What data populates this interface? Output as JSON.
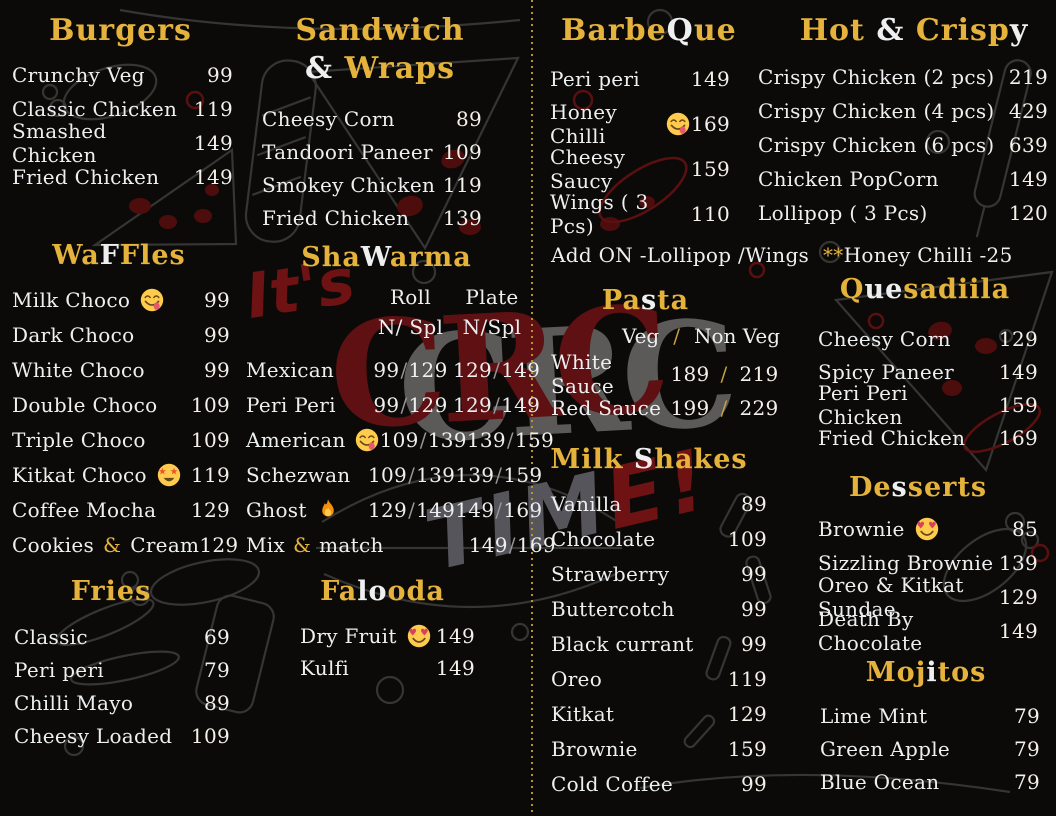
{
  "palette": {
    "background": "#0b0a08",
    "gold": "#e5b33c",
    "white": "#eeeff1",
    "divider_gold": "#b9922a",
    "watermark_red": "#6e1214",
    "watermark_gray": "#5b5a58"
  },
  "watermark": {
    "its": "It's",
    "crc": "CRC",
    "time_gray": "TIM",
    "time_red": "E!"
  },
  "notes": [
    {
      "id": "addon",
      "parts": [
        {
          "t": "Add ON  -Lollipop /Wings",
          "c": "w"
        }
      ]
    },
    {
      "id": "honey",
      "parts": [
        {
          "t": "**",
          "c": "g"
        },
        {
          "t": "Honey Chilli -25",
          "c": "w"
        }
      ]
    }
  ],
  "sections": [
    {
      "id": "burgers",
      "type": "simple",
      "title_parts": [
        {
          "t": "Burgers",
          "c": "g"
        }
      ],
      "items": [
        {
          "name": "Crunchy Veg",
          "price": "99"
        },
        {
          "name": "Classic Chicken",
          "price": "119"
        },
        {
          "name": "Smashed Chicken",
          "price": "149"
        },
        {
          "name": "Fried Chicken",
          "price": "149"
        }
      ]
    },
    {
      "id": "sandwich",
      "type": "simple",
      "title_parts": [
        {
          "t": "Sandwich ",
          "c": "g"
        },
        {
          "t": "&",
          "c": "w"
        },
        {
          "t": " Wraps",
          "c": "g"
        }
      ],
      "items": [
        {
          "name": "Cheesy Corn",
          "price": "89"
        },
        {
          "name": "Tandoori Paneer",
          "price": "109"
        },
        {
          "name": "Smokey Chicken",
          "price": "119"
        },
        {
          "name": "Fried Chicken",
          "price": "139"
        }
      ]
    },
    {
      "id": "barbeque",
      "type": "simple",
      "title_parts": [
        {
          "t": "Barbe",
          "c": "g"
        },
        {
          "t": "Q",
          "c": "w"
        },
        {
          "t": "ue",
          "c": "g"
        }
      ],
      "items": [
        {
          "name": "Peri peri",
          "price": "149"
        },
        {
          "name": "Honey Chilli",
          "emoji": "savoring",
          "price": "169"
        },
        {
          "name": "Cheesy Saucy",
          "price": "159"
        },
        {
          "name": "Wings ( 3 Pcs)",
          "price": "110"
        }
      ]
    },
    {
      "id": "hotcrispy",
      "type": "simple",
      "title_parts": [
        {
          "t": "Hot ",
          "c": "g"
        },
        {
          "t": "&",
          "c": "w"
        },
        {
          "t": " Crisp",
          "c": "g"
        },
        {
          "t": "y",
          "c": "w"
        }
      ],
      "items": [
        {
          "name": "Crispy Chicken (2 pcs)",
          "price": "219"
        },
        {
          "name": "Crispy Chicken (4 pcs)",
          "price": "429"
        },
        {
          "name": "Crispy Chicken (6 pcs)",
          "price": "639"
        },
        {
          "name": "Chicken  PopCorn",
          "price": "149"
        },
        {
          "name": "Lollipop ( 3 Pcs)",
          "price": "120"
        }
      ]
    },
    {
      "id": "waffles",
      "type": "simple",
      "title_parts": [
        {
          "t": "Wa",
          "c": "g"
        },
        {
          "t": "F",
          "c": "w"
        },
        {
          "t": "Fles",
          "c": "g"
        }
      ],
      "items": [
        {
          "name": "Milk Choco",
          "emoji": "savoring",
          "price": "99"
        },
        {
          "name": "Dark Choco",
          "price": "99"
        },
        {
          "name": "White Choco",
          "price": "99"
        },
        {
          "name": "Double Choco",
          "price": "109"
        },
        {
          "name": "Triple Choco",
          "price": "109"
        },
        {
          "name": "Kitkat Choco",
          "emoji": "star-struck",
          "price": "119"
        },
        {
          "name": "Coffee Mocha",
          "price": "129"
        },
        {
          "name_parts": [
            {
              "t": "Cookies ",
              "c": "w"
            },
            {
              "t": "&",
              "c": "g"
            },
            {
              "t": " Cream",
              "c": "w"
            }
          ],
          "price": "129"
        }
      ]
    },
    {
      "id": "shawarma",
      "type": "shawarma",
      "title_parts": [
        {
          "t": "Sha",
          "c": "g"
        },
        {
          "t": "W",
          "c": "w"
        },
        {
          "t": "arma",
          "c": "g"
        }
      ],
      "col_headers": {
        "roll": "Roll",
        "plate": "Plate",
        "roll_sub": "N/ Spl",
        "plate_sub": "N/Spl"
      },
      "items": [
        {
          "name": "Mexican",
          "roll": {
            "a": "99",
            "b": "129"
          },
          "plate": {
            "a": "129",
            "b": "149"
          }
        },
        {
          "name": "Peri Peri",
          "roll": {
            "a": "99",
            "b": "129"
          },
          "plate": {
            "a": "129",
            "b": "149"
          }
        },
        {
          "name": "American",
          "emoji": "savoring",
          "roll": {
            "a": "109",
            "b": "139"
          },
          "plate": {
            "a": "139",
            "b": "159"
          }
        },
        {
          "name": "Schezwan",
          "roll": {
            "a": "109",
            "b": "139"
          },
          "plate": {
            "a": "139",
            "b": "159"
          }
        },
        {
          "name": "Ghost",
          "emoji": "fire",
          "roll": {
            "a": "129",
            "b": "149"
          },
          "plate": {
            "a": "149",
            "b": "169"
          }
        },
        {
          "name_parts": [
            {
              "t": "Mix ",
              "c": "w"
            },
            {
              "t": "&",
              "c": "g"
            },
            {
              "t": " match",
              "c": "w"
            }
          ],
          "roll": null,
          "plate": {
            "a": "149",
            "b": "169"
          }
        }
      ]
    },
    {
      "id": "pasta",
      "type": "pasta",
      "title_parts": [
        {
          "t": "Pa",
          "c": "g"
        },
        {
          "t": "s",
          "c": "w"
        },
        {
          "t": "ta",
          "c": "g"
        }
      ],
      "col_headers": {
        "veg": "Veg",
        "sep": "/",
        "nonveg": "Non Veg"
      },
      "items": [
        {
          "name": "White Sauce",
          "veg": "189",
          "nonveg": "219"
        },
        {
          "name": "Red Sauce",
          "veg": "199",
          "nonveg": "229"
        }
      ]
    },
    {
      "id": "quesadiila",
      "type": "simple",
      "title_parts": [
        {
          "t": "Q",
          "c": "g"
        },
        {
          "t": "ue",
          "c": "w"
        },
        {
          "t": "sadiila",
          "c": "g"
        }
      ],
      "items": [
        {
          "name": "Cheesy Corn",
          "price": "129"
        },
        {
          "name": "Spicy Paneer",
          "price": "149"
        },
        {
          "name": "Peri Peri Chicken",
          "price": "159"
        },
        {
          "name": "Fried Chicken",
          "price": "169"
        }
      ]
    },
    {
      "id": "milkshakes",
      "type": "simple",
      "title_parts": [
        {
          "t": "Milk ",
          "c": "g"
        },
        {
          "t": "S",
          "c": "w"
        },
        {
          "t": "hakes",
          "c": "g"
        }
      ],
      "items": [
        {
          "name": "Vanilla",
          "price": "89"
        },
        {
          "name": "Chocolate",
          "price": "109"
        },
        {
          "name": "Strawberry",
          "price": "99"
        },
        {
          "name": "Buttercotch",
          "price": "99"
        },
        {
          "name": "Black currant",
          "price": "99"
        },
        {
          "name": "Oreo",
          "price": "119"
        },
        {
          "name": "Kitkat",
          "price": "129"
        },
        {
          "name": "Brownie",
          "price": "159"
        },
        {
          "name": "Cold Coffee",
          "price": "99"
        }
      ]
    },
    {
      "id": "desserts",
      "type": "simple",
      "title_parts": [
        {
          "t": "De",
          "c": "g"
        },
        {
          "t": "s",
          "c": "w"
        },
        {
          "t": "serts",
          "c": "g"
        }
      ],
      "items": [
        {
          "name": "Brownie",
          "emoji": "heart-eyes",
          "price": "85"
        },
        {
          "name": "Sizzling Brownie",
          "price": "139"
        },
        {
          "name": "Oreo & Kitkat Sundae",
          "price": "129"
        },
        {
          "name": "Death By Chocolate",
          "price": "149"
        }
      ]
    },
    {
      "id": "mojitos",
      "type": "simple",
      "title_parts": [
        {
          "t": "Moj",
          "c": "g"
        },
        {
          "t": "i",
          "c": "w"
        },
        {
          "t": "tos",
          "c": "g"
        }
      ],
      "items": [
        {
          "name": "Lime Mint",
          "price": "79"
        },
        {
          "name": "Green Apple",
          "price": "79"
        },
        {
          "name": "Blue Ocean",
          "price": "79"
        }
      ]
    },
    {
      "id": "fries",
      "type": "simple",
      "title_parts": [
        {
          "t": "Fries",
          "c": "g"
        }
      ],
      "items": [
        {
          "name": "Classic",
          "price": "69"
        },
        {
          "name": "Peri peri",
          "price": "79"
        },
        {
          "name": "Chilli Mayo",
          "price": "89"
        },
        {
          "name": "Cheesy Loaded",
          "price": "109"
        }
      ]
    },
    {
      "id": "falooda",
      "type": "simple",
      "title_parts": [
        {
          "t": "Fa",
          "c": "g"
        },
        {
          "t": "lo",
          "c": "w"
        },
        {
          "t": "oda",
          "c": "g"
        }
      ],
      "items": [
        {
          "name": "Dry Fruit",
          "emoji": "heart-eyes",
          "price": "149"
        },
        {
          "name": "Kulfi",
          "price": "149"
        }
      ]
    }
  ]
}
